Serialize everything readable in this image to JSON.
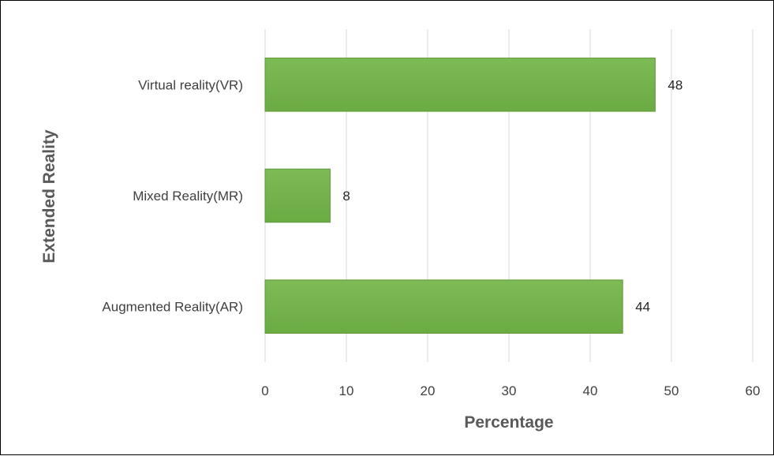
{
  "chart_data": {
    "type": "bar",
    "orientation": "horizontal",
    "categories": [
      "Virtual reality(VR)",
      "Mixed Reality(MR)",
      "Augmented Reality(AR)"
    ],
    "values": [
      48,
      8,
      44
    ],
    "xlabel": "Percentage",
    "ylabel": "Extended Reality",
    "xlim": [
      0,
      60
    ],
    "xticks": [
      0,
      10,
      20,
      30,
      40,
      50,
      60
    ],
    "grid": true,
    "data_labels": true,
    "bar_color": "#6cab43",
    "bar_color_light": "#7dbb55"
  }
}
